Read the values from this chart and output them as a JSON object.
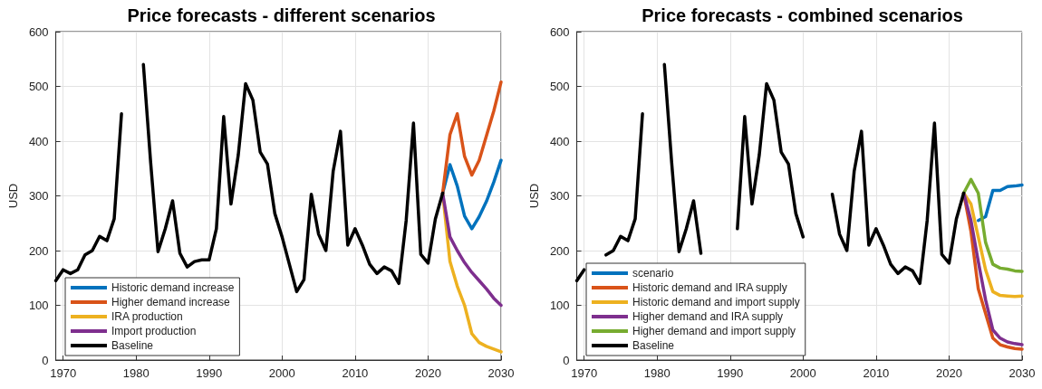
{
  "chart_data": [
    {
      "type": "line",
      "title": "Price forecasts - different scenarios",
      "ylabel": "USD",
      "xlim": [
        1969,
        2030
      ],
      "xticks": [
        1970,
        1980,
        1990,
        2000,
        2010,
        2020,
        2030
      ],
      "ylim": [
        0,
        600
      ],
      "yticks": [
        0,
        100,
        200,
        300,
        400,
        500,
        600
      ],
      "grid": true,
      "legend": "bottom left",
      "marker": "none",
      "line_style": "solid",
      "series": [
        {
          "name": "Historic demand increase",
          "color": "#0072bd",
          "x": [
            2022,
            2023,
            2024,
            2025,
            2026,
            2027,
            2028,
            2029,
            2030
          ],
          "values": [
            305,
            357,
            318,
            263,
            240,
            262,
            290,
            325,
            365
          ]
        },
        {
          "name": "Higher demand increase",
          "color": "#d95319",
          "x": [
            2022,
            2023,
            2024,
            2025,
            2026,
            2027,
            2028,
            2029,
            2030
          ],
          "values": [
            305,
            412,
            450,
            372,
            338,
            365,
            410,
            455,
            508
          ]
        },
        {
          "name": "IRA production",
          "color": "#edb120",
          "x": [
            2022,
            2023,
            2024,
            2025,
            2026,
            2027,
            2028,
            2029,
            2030
          ],
          "values": [
            305,
            180,
            135,
            100,
            48,
            32,
            25,
            20,
            15
          ]
        },
        {
          "name": "Import production",
          "color": "#7e2f8e",
          "x": [
            2022,
            2023,
            2024,
            2025,
            2026,
            2027,
            2028,
            2029,
            2030
          ],
          "values": [
            305,
            225,
            200,
            178,
            160,
            145,
            130,
            113,
            100
          ]
        },
        {
          "name": "Baseline",
          "color": "#000000",
          "x": [
            1969,
            1970,
            1971,
            1972,
            1973,
            1974,
            1975,
            1976,
            1977,
            1978,
            1979,
            1980,
            1981,
            1982,
            1983,
            1984,
            1985,
            1986,
            1987,
            1988,
            1989,
            1990,
            1991,
            1992,
            1993,
            1994,
            1995,
            1996,
            1997,
            1998,
            1999,
            2000,
            2001,
            2002,
            2003,
            2004,
            2005,
            2006,
            2007,
            2008,
            2009,
            2010,
            2011,
            2012,
            2013,
            2014,
            2015,
            2016,
            2017,
            2018,
            2019,
            2020,
            2021,
            2022
          ],
          "values": [
            145,
            165,
            158,
            165,
            192,
            200,
            226,
            218,
            258,
            450,
            null,
            null,
            540,
            360,
            198,
            240,
            291,
            195,
            170,
            180,
            183,
            183,
            240,
            445,
            285,
            375,
            505,
            475,
            380,
            358,
            268,
            225,
            175,
            125,
            147,
            303,
            230,
            200,
            345,
            418,
            210,
            240,
            210,
            175,
            158,
            170,
            163,
            140,
            255,
            433,
            193,
            177,
            258,
            305
          ]
        }
      ]
    },
    {
      "type": "line",
      "title": "Price forecasts - combined scenarios",
      "ylabel": "USD",
      "xlim": [
        1969,
        2030
      ],
      "xticks": [
        1970,
        1980,
        1990,
        2000,
        2010,
        2020,
        2030
      ],
      "ylim": [
        0,
        600
      ],
      "yticks": [
        0,
        100,
        200,
        300,
        400,
        500,
        600
      ],
      "grid": true,
      "legend": "bottom left",
      "marker": "none",
      "line_style": "solid",
      "series": [
        {
          "name": "scenario",
          "color": "#0072bd",
          "x": [
            2024,
            2025,
            2026,
            2027,
            2028,
            2029,
            2030
          ],
          "values": [
            255,
            262,
            310,
            310,
            317,
            318,
            320
          ]
        },
        {
          "name": "Historic demand and IRA supply",
          "color": "#d95319",
          "x": [
            2022,
            2023,
            2024,
            2025,
            2026,
            2027,
            2028,
            2029,
            2030
          ],
          "values": [
            305,
            235,
            130,
            85,
            40,
            28,
            24,
            21,
            20
          ]
        },
        {
          "name": "Historic demand and import supply",
          "color": "#edb120",
          "x": [
            2022,
            2023,
            2024,
            2025,
            2026,
            2027,
            2028,
            2029,
            2030
          ],
          "values": [
            305,
            285,
            225,
            165,
            125,
            118,
            117,
            116,
            117
          ]
        },
        {
          "name": "Higher demand and IRA supply",
          "color": "#7e2f8e",
          "x": [
            2022,
            2023,
            2024,
            2025,
            2026,
            2027,
            2028,
            2029,
            2030
          ],
          "values": [
            305,
            255,
            180,
            110,
            55,
            40,
            33,
            30,
            28
          ]
        },
        {
          "name": "Higher demand and import supply",
          "color": "#77ac30",
          "x": [
            2022,
            2023,
            2024,
            2025,
            2026,
            2027,
            2028,
            2029,
            2030
          ],
          "values": [
            305,
            330,
            305,
            215,
            175,
            168,
            166,
            163,
            162
          ]
        },
        {
          "name": "Baseline",
          "color": "#000000",
          "x": [
            1969,
            1970,
            1971,
            1972,
            1973,
            1974,
            1975,
            1976,
            1977,
            1978,
            1979,
            1980,
            1981,
            1982,
            1983,
            1984,
            1985,
            1986,
            1987,
            1988,
            1989,
            1990,
            1991,
            1992,
            1993,
            1994,
            1995,
            1996,
            1997,
            1998,
            1999,
            2000,
            2001,
            2002,
            2003,
            2004,
            2005,
            2006,
            2007,
            2008,
            2009,
            2010,
            2011,
            2012,
            2013,
            2014,
            2015,
            2016,
            2017,
            2018,
            2019,
            2020,
            2021,
            2022
          ],
          "values": [
            145,
            165,
            null,
            null,
            192,
            200,
            226,
            218,
            258,
            450,
            null,
            null,
            540,
            360,
            198,
            240,
            291,
            195,
            null,
            null,
            null,
            null,
            240,
            445,
            285,
            375,
            505,
            475,
            380,
            358,
            268,
            225,
            null,
            null,
            null,
            303,
            230,
            200,
            345,
            418,
            210,
            240,
            210,
            175,
            158,
            170,
            163,
            140,
            255,
            433,
            193,
            177,
            258,
            305
          ]
        }
      ]
    }
  ]
}
